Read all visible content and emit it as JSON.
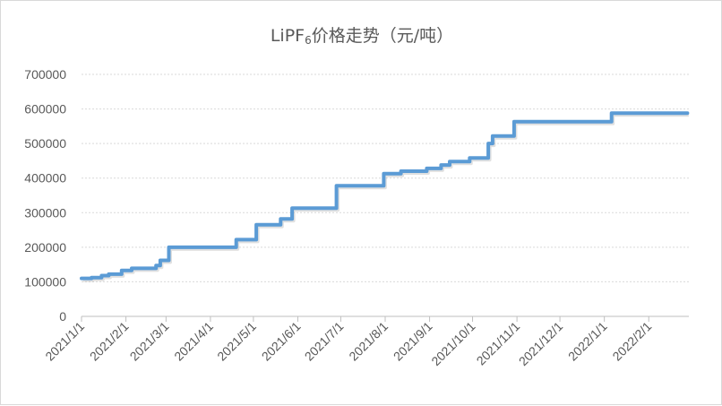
{
  "chart_data": {
    "type": "line",
    "title": {
      "main": "LiPF",
      "subscript": "6",
      "rest": "价格走势（元/吨）"
    },
    "xlabel": "",
    "ylabel": "",
    "ylim": [
      0,
      700000
    ],
    "y_ticks": [
      "0",
      "100000",
      "200000",
      "300000",
      "400000",
      "500000",
      "600000",
      "700000"
    ],
    "x_ticks": [
      "2021/1/1",
      "2021/2/1",
      "2021/3/1",
      "2021/4/1",
      "2021/5/1",
      "2021/6/1",
      "2021/7/1",
      "2021/8/1",
      "2021/9/1",
      "2021/10/1",
      "2021/11/1",
      "2021/12/1",
      "2022/1/1",
      "2022/2/1"
    ],
    "x_range": [
      "2021/1/1",
      "2022/2/28"
    ],
    "grid": "horizontal dotted",
    "legend": "none",
    "line_color": "#5b9bd5",
    "series": [
      {
        "points": [
          [
            "2021/1/1",
            110000
          ],
          [
            "2021/1/8",
            110000
          ],
          [
            "2021/1/8",
            112000
          ],
          [
            "2021/1/15",
            112000
          ],
          [
            "2021/1/15",
            118000
          ],
          [
            "2021/1/20",
            118000
          ],
          [
            "2021/1/20",
            122000
          ],
          [
            "2021/1/29",
            122000
          ],
          [
            "2021/1/29",
            133000
          ],
          [
            "2021/2/5",
            133000
          ],
          [
            "2021/2/5",
            139000
          ],
          [
            "2021/2/22",
            139000
          ],
          [
            "2021/2/22",
            147000
          ],
          [
            "2021/2/25",
            147000
          ],
          [
            "2021/2/25",
            162000
          ],
          [
            "2021/3/3",
            162000
          ],
          [
            "2021/3/3",
            200000
          ],
          [
            "2021/4/19",
            200000
          ],
          [
            "2021/4/19",
            222000
          ],
          [
            "2021/5/3",
            222000
          ],
          [
            "2021/5/3",
            265000
          ],
          [
            "2021/5/20",
            265000
          ],
          [
            "2021/5/20",
            282000
          ],
          [
            "2021/5/28",
            282000
          ],
          [
            "2021/5/28",
            313000
          ],
          [
            "2021/6/28",
            313000
          ],
          [
            "2021/6/28",
            378000
          ],
          [
            "2021/7/31",
            378000
          ],
          [
            "2021/7/31",
            413000
          ],
          [
            "2021/8/12",
            413000
          ],
          [
            "2021/8/12",
            420000
          ],
          [
            "2021/8/30",
            420000
          ],
          [
            "2021/8/30",
            428000
          ],
          [
            "2021/9/9",
            428000
          ],
          [
            "2021/9/9",
            438000
          ],
          [
            "2021/9/15",
            438000
          ],
          [
            "2021/9/15",
            448000
          ],
          [
            "2021/9/29",
            448000
          ],
          [
            "2021/9/29",
            458000
          ],
          [
            "2021/10/12",
            458000
          ],
          [
            "2021/10/12",
            500000
          ],
          [
            "2021/10/15",
            500000
          ],
          [
            "2021/10/15",
            522000
          ],
          [
            "2021/10/30",
            522000
          ],
          [
            "2021/10/30",
            563000
          ],
          [
            "2022/1/6",
            563000
          ],
          [
            "2022/1/6",
            588000
          ],
          [
            "2022/2/28",
            588000
          ]
        ]
      }
    ]
  }
}
